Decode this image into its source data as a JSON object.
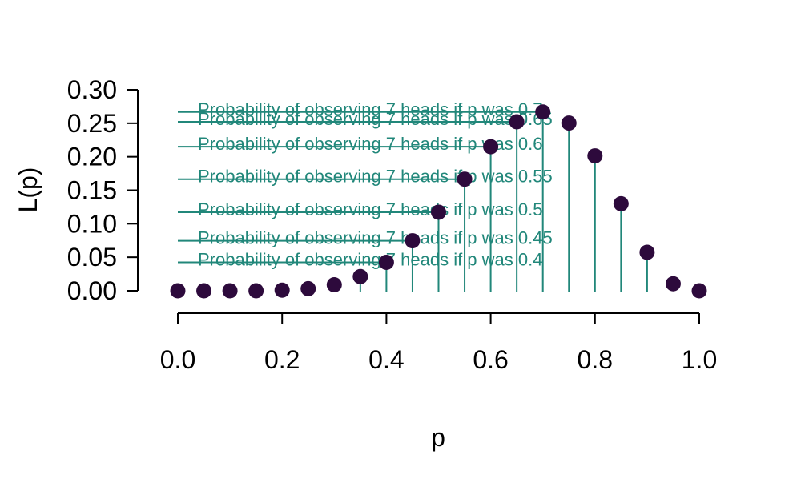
{
  "chart_data": {
    "type": "scatter",
    "title": "",
    "xlabel": "p",
    "ylabel": "L(p)",
    "xlim": [
      0,
      1
    ],
    "ylim": [
      0,
      0.3
    ],
    "xticks": [
      0.0,
      0.2,
      0.4,
      0.6,
      0.8,
      1.0
    ],
    "xtick_labels": [
      "0.0",
      "0.2",
      "0.4",
      "0.6",
      "0.8",
      "1.0"
    ],
    "yticks": [
      0.0,
      0.05,
      0.1,
      0.15,
      0.2,
      0.25,
      0.3
    ],
    "ytick_labels": [
      "0.00",
      "0.05",
      "0.10",
      "0.15",
      "0.20",
      "0.25",
      "0.30"
    ],
    "grid": false,
    "point_color": "#2d0a3c",
    "annotation_color": "#21877a",
    "series": [
      {
        "x": [
          0.0,
          0.05,
          0.1,
          0.15,
          0.2,
          0.25,
          0.3,
          0.35,
          0.4,
          0.45,
          0.5,
          0.55,
          0.6,
          0.65,
          0.7,
          0.75,
          0.8,
          0.85,
          0.9,
          0.95,
          1.0
        ],
        "y": [
          0.0,
          0.0,
          0.0,
          0.0,
          0.0009,
          0.0031,
          0.009,
          0.0212,
          0.0425,
          0.0746,
          0.1172,
          0.1665,
          0.215,
          0.2522,
          0.2668,
          0.2503,
          0.2013,
          0.1298,
          0.0574,
          0.0105,
          0.0
        ]
      }
    ],
    "vertical_lines_x": [
      0.35,
      0.4,
      0.45,
      0.5,
      0.55,
      0.6,
      0.65,
      0.7,
      0.75,
      0.8,
      0.85,
      0.9
    ],
    "annotations": [
      {
        "p": 0.7,
        "y": 0.2668,
        "text": "Probability of observing 7 heads if p was  0.7"
      },
      {
        "p": 0.65,
        "y": 0.2522,
        "text": "Probability of observing 7 heads if p was  0.65"
      },
      {
        "p": 0.6,
        "y": 0.215,
        "text": "Probability of observing 7 heads if p was  0.6"
      },
      {
        "p": 0.55,
        "y": 0.1665,
        "text": "Probability of observing 7 heads if p was  0.55"
      },
      {
        "p": 0.5,
        "y": 0.1172,
        "text": "Probability of observing 7 heads if p was  0.5"
      },
      {
        "p": 0.45,
        "y": 0.0746,
        "text": "Probability of observing 7 heads if p was  0.45"
      },
      {
        "p": 0.4,
        "y": 0.0425,
        "text": "Probability of observing 7 heads if p was  0.4"
      }
    ]
  }
}
